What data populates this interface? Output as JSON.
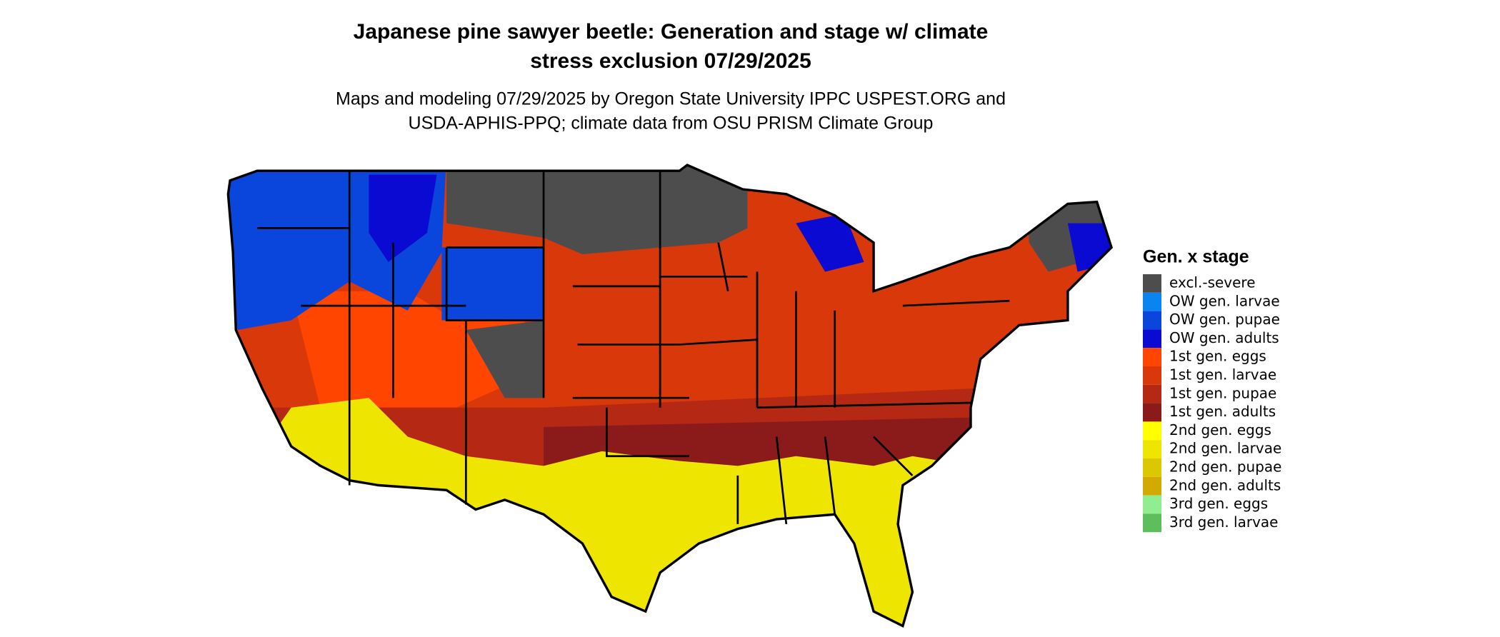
{
  "header": {
    "title_line1": "Japanese pine sawyer beetle: Generation and stage w/ climate",
    "title_line2": "stress exclusion 07/29/2025",
    "subtitle_line1": "Maps and modeling 07/29/2025 by Oregon State University IPPC USPEST.ORG and",
    "subtitle_line2": "USDA-APHIS-PPQ; climate data from OSU PRISM Climate Group"
  },
  "legend": {
    "title": "Gen. x stage",
    "items": [
      {
        "label": "excl.-severe",
        "color": "#4d4d4d"
      },
      {
        "label": "OW gen. larvae",
        "color": "#0a84f0"
      },
      {
        "label": "OW gen. pupae",
        "color": "#0a46dc"
      },
      {
        "label": "OW gen. adults",
        "color": "#0a0ad2"
      },
      {
        "label": "1st gen. eggs",
        "color": "#ff4500"
      },
      {
        "label": "1st gen. larvae",
        "color": "#d9380a"
      },
      {
        "label": "1st gen. pupae",
        "color": "#b42814"
      },
      {
        "label": "1st gen. adults",
        "color": "#8b1a1a"
      },
      {
        "label": "2nd gen. eggs",
        "color": "#ffff00"
      },
      {
        "label": "2nd gen. larvae",
        "color": "#eee600"
      },
      {
        "label": "2nd gen. pupae",
        "color": "#dcc800"
      },
      {
        "label": "2nd gen. adults",
        "color": "#d2aa00"
      },
      {
        "label": "3rd gen. eggs",
        "color": "#90ee90"
      },
      {
        "label": "3rd gen. larvae",
        "color": "#5cbf5c"
      }
    ]
  }
}
